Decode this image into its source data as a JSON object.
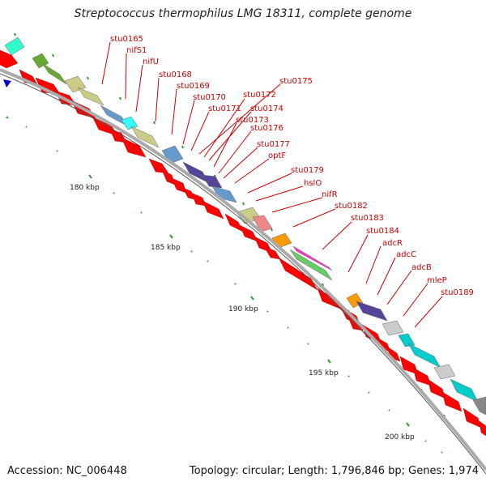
{
  "title": "Streptococcus thermophilus LMG 18311, complete genome",
  "footer": {
    "accession": "Accession: NC_006448",
    "topology": "Topology: circular; Length: 1,796,846 bp; Genes: 1,974"
  },
  "scale_labels": [
    "180 kbp",
    "185 kbp",
    "190 kbp",
    "195 kbp",
    "200 kbp"
  ],
  "gene_labels": [
    "stu0165",
    "nifS1",
    "nifU",
    "stu0168",
    "stu0169",
    "stu0170",
    "stu0171",
    "stu0172",
    "stu0173",
    "stu0174",
    "stu0175",
    "stu0176",
    "stu0177",
    "optF",
    "stu0179",
    "hslO",
    "nifR",
    "stu0182",
    "stu0183",
    "stu0184",
    "adcR",
    "adcC",
    "adcB",
    "mleP",
    "stu0189"
  ],
  "colors": {
    "gene_arrow": "#ff0000",
    "label_text": "#cc0000",
    "backbone": "#aaaaaa",
    "tick": "#339933",
    "cog_categories": [
      "#33ffcc",
      "#66aa33",
      "#cccc88",
      "#6699cc",
      "#33ffff",
      "#554499",
      "#ee8888",
      "#ff9900",
      "#ff33cc",
      "#00cccc",
      "#cccccc",
      "#888888"
    ]
  },
  "icons": [
    "start-marker-icon"
  ]
}
